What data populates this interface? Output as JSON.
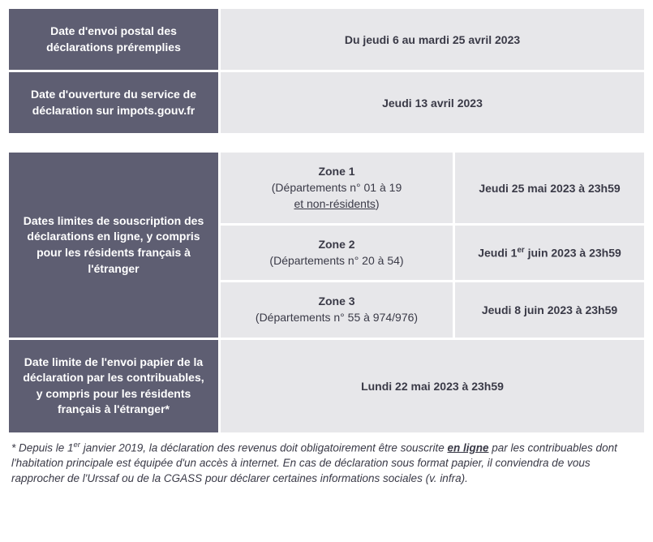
{
  "table1": {
    "row1_label": "Date d'envoi postal des déclarations préremplies",
    "row1_value": "Du jeudi 6 au mardi 25 avril 2023",
    "row2_label": "Date d'ouverture du service de déclaration sur impots.gouv.fr",
    "row2_value": "Jeudi 13 avril 2023"
  },
  "table2": {
    "row1_label": "Dates limites de souscription des déclarations en ligne, y compris pour les résidents français à l'étranger",
    "zone1_title": "Zone 1",
    "zone1_sub_a": "(Départements n° 01 à 19",
    "zone1_sub_link": "et non-résidents",
    "zone1_sub_b": ")",
    "zone1_date": "Jeudi 25 mai 2023 à 23h59",
    "zone2_title": "Zone 2",
    "zone2_sub": "(Départements n° 20 à 54)",
    "zone2_date_a": "Jeudi 1",
    "zone2_date_sup": "er",
    "zone2_date_b": " juin 2023 à 23h59",
    "zone3_title": "Zone 3",
    "zone3_sub": "(Départements n° 55 à 974/976)",
    "zone3_date": "Jeudi 8 juin 2023 à 23h59",
    "row2_label": "Date limite de l'envoi papier de la déclaration par les contribuables, y compris pour les résidents français à l'étranger*",
    "row2_value": "Lundi 22 mai 2023 à 23h59"
  },
  "footnote": {
    "a": "* Depuis le 1",
    "sup": "er",
    "b": " janvier 2019, la déclaration des revenus doit obligatoirement être souscrite ",
    "link": "en ligne",
    "c": " par les contribuables dont l'habitation principale est équipée d'un accès à internet. En cas de déclaration sous format papier, il conviendra de vous rapprocher de l'Urssaf ou de la CGASS pour déclarer certaines informations sociales (v. infra)."
  },
  "layout": {
    "col_label_width": 258,
    "col_zone_width": 286,
    "col_date_width": 245
  }
}
